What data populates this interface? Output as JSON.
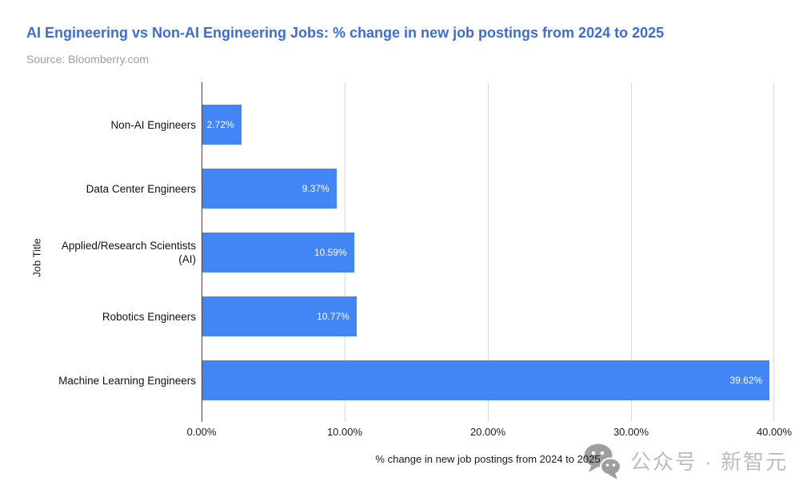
{
  "header": {
    "title": "AI Engineering vs Non-AI Engineering Jobs: % change in new job postings from 2024 to 2025",
    "source": "Source: Bloomberry.com"
  },
  "chart_data": {
    "type": "bar",
    "orientation": "horizontal",
    "title": "AI Engineering vs Non-AI Engineering Jobs: % change in new job postings from 2024 to 2025",
    "categories": [
      "Non-AI Engineers",
      "Data Center Engineers",
      "Applied/Research Scientists (AI)",
      "Robotics Engineers",
      "Machine Learning Engineers"
    ],
    "values": [
      2.72,
      9.37,
      10.59,
      10.77,
      39.62
    ],
    "value_labels": [
      "2.72%",
      "9.37%",
      "10.59%",
      "10.77%",
      "39.62%"
    ],
    "xlabel": "% change in new job postings from 2024 to 2025",
    "ylabel": "Job Title",
    "xlim": [
      0,
      40
    ],
    "x_ticks": [
      "0.00%",
      "10.00%",
      "20.00%",
      "30.00%",
      "40.00%"
    ],
    "grid": true,
    "legend": "none"
  },
  "watermark": {
    "icon": "wechat-icon",
    "text": "公众号 · 新智元"
  },
  "colors": {
    "title": "#3c6dd5",
    "source": "#9e9e9e",
    "bar": "#4285f4",
    "bar_label": "#ffffff",
    "axis_line": "#424242",
    "gridline": "#d9d9d9",
    "tick_label": "#1a1a1a",
    "category_label": "#111111",
    "axis_title": "#1a1a1a",
    "watermark_icon": "#9e9e9e",
    "watermark_text": "#bdbdbd"
  }
}
